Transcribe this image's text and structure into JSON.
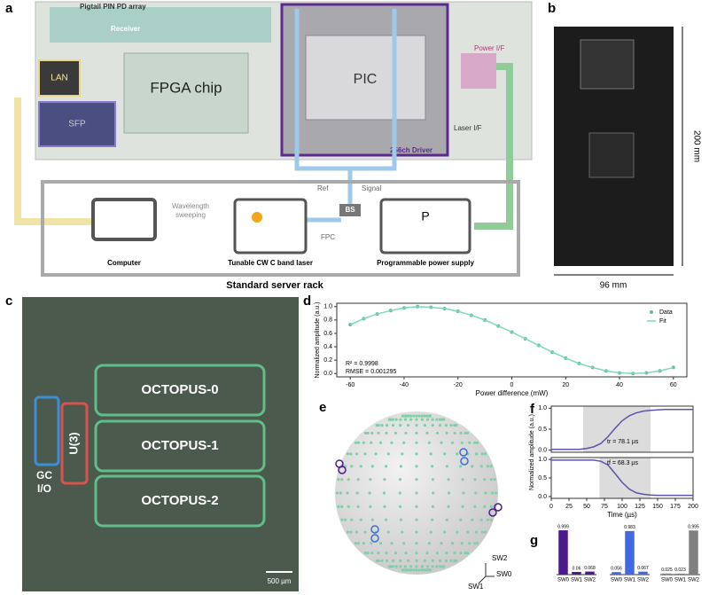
{
  "panel_labels": [
    "a",
    "b",
    "c",
    "d",
    "e",
    "f",
    "g"
  ],
  "a": {
    "pd_array": "Pigtail PIN PD array",
    "receiver": "Receiver",
    "lan": "LAN",
    "fpga": "FPGA chip",
    "sfp": "SFP",
    "pic": "PIC",
    "driver": "256ch Driver",
    "power_if": "Power I/F",
    "laser_if": "Laser I/F",
    "computer": "Computer",
    "sweep": [
      "Wavelength",
      "sweeping"
    ],
    "laser": "Tunable CW C band laser",
    "fpc": "FPC",
    "ref": "Ref",
    "signal": "Signal",
    "bs": "BS",
    "p": "P",
    "psu": "Programmable power supply",
    "rack": "Standard server rack"
  },
  "b": {
    "height": "200 mm",
    "width": "96 mm"
  },
  "c": {
    "octopus": [
      "OCTOPUS-0",
      "OCTOPUS-1",
      "OCTOPUS-2"
    ],
    "u3": "U(3)",
    "gc": [
      "GC",
      "I/O"
    ],
    "scale": "500 µm"
  },
  "e": {
    "axes": [
      "SW0",
      "SW1",
      "SW2"
    ]
  },
  "chart_data": [
    {
      "type": "line",
      "xlabel": "Power difference (mW)",
      "ylabel": "Normalized amplitude (a.u.)",
      "x": [
        -60,
        -55,
        -50,
        -45,
        -40,
        -35,
        -30,
        -25,
        -20,
        -15,
        -10,
        -5,
        0,
        5,
        10,
        15,
        20,
        25,
        30,
        35,
        40,
        45,
        50,
        55,
        60
      ],
      "series": [
        {
          "name": "Data",
          "color": "#5fbf95",
          "mode": "markers",
          "values": [
            0.73,
            0.82,
            0.89,
            0.94,
            0.98,
            1.0,
            0.99,
            0.97,
            0.93,
            0.87,
            0.8,
            0.71,
            0.62,
            0.52,
            0.42,
            0.32,
            0.23,
            0.15,
            0.09,
            0.04,
            0.01,
            0,
            0.01,
            0.04,
            0.09
          ]
        },
        {
          "name": "Fit",
          "color": "#7fd6c0",
          "mode": "line",
          "values": [
            0.73,
            0.82,
            0.89,
            0.94,
            0.98,
            1.0,
            0.99,
            0.97,
            0.93,
            0.87,
            0.8,
            0.71,
            0.62,
            0.52,
            0.42,
            0.32,
            0.23,
            0.15,
            0.09,
            0.04,
            0.01,
            0,
            0.01,
            0.04,
            0.09
          ]
        }
      ],
      "xlim": [
        -65,
        65
      ],
      "xticks": [
        -60,
        -40,
        -20,
        0,
        20,
        40,
        60
      ],
      "ylim": [
        -0.05,
        1.05
      ],
      "yticks": [
        {
          "value": 0,
          "label": "0.0"
        },
        {
          "value": 0.2,
          "label": "0.2"
        },
        {
          "value": 0.4,
          "label": "0.4"
        },
        {
          "value": 0.6,
          "label": "0.6"
        },
        {
          "value": 0.8,
          "label": "0.8"
        },
        {
          "value": 1,
          "label": "1.0"
        }
      ],
      "legend": "right",
      "annotations": [
        "R² = 0.9998",
        "RMSE = 0.001295"
      ]
    },
    {
      "type": "line",
      "ylabel": "Normalized amplitude (a.u.)",
      "x": [
        0,
        10,
        20,
        30,
        40,
        50,
        60,
        70,
        80,
        90,
        100,
        110,
        120,
        130,
        140,
        150,
        160,
        170,
        180,
        190,
        200
      ],
      "series": [
        {
          "color": "#5a55a8",
          "mode": "line",
          "values": [
            0.02,
            0.02,
            0.02,
            0.02,
            0.02,
            0.04,
            0.08,
            0.16,
            0.32,
            0.52,
            0.7,
            0.82,
            0.89,
            0.93,
            0.95,
            0.96,
            0.97,
            0.97,
            0.97,
            0.97,
            0.97
          ]
        }
      ],
      "xlim": [
        0,
        200
      ],
      "ylim": [
        -0.05,
        1.05
      ],
      "yticks": [
        {
          "value": 0,
          "label": "0.0"
        },
        {
          "value": 0.5,
          "label": "0.5"
        },
        {
          "value": 1,
          "label": "1.0"
        }
      ],
      "shade": [
        45,
        140
      ],
      "annotations": [
        "tr = 78.1 µs"
      ]
    },
    {
      "type": "line",
      "xlabel": "Time (µs)",
      "x": [
        0,
        10,
        20,
        30,
        40,
        50,
        60,
        70,
        80,
        90,
        100,
        110,
        120,
        130,
        140,
        150,
        160,
        170,
        180,
        190,
        200
      ],
      "series": [
        {
          "color": "#5a55a8",
          "mode": "line",
          "values": [
            0.98,
            0.98,
            0.98,
            0.98,
            0.98,
            0.98,
            0.98,
            0.95,
            0.85,
            0.62,
            0.38,
            0.2,
            0.1,
            0.06,
            0.04,
            0.03,
            0.03,
            0.03,
            0.03,
            0.03,
            0.03
          ]
        }
      ],
      "xlim": [
        0,
        200
      ],
      "xticks": [
        0,
        25,
        50,
        75,
        100,
        125,
        150,
        175,
        200
      ],
      "ylim": [
        -0.05,
        1.05
      ],
      "yticks": [
        {
          "value": 0,
          "label": "0.0"
        },
        {
          "value": 0.5,
          "label": "0.5"
        },
        {
          "value": 1,
          "label": "1.0"
        }
      ],
      "shade": [
        68,
        140
      ],
      "annotations": [
        "tf = 68.3 µs"
      ]
    },
    {
      "type": "bar",
      "categories": [
        "SW0",
        "SW1",
        "SW2"
      ],
      "values": [
        0.999,
        0.06,
        0.068
      ],
      "color": "#4b1a8c"
    },
    {
      "type": "bar",
      "categories": [
        "SW0",
        "SW1",
        "SW2"
      ],
      "values": [
        0.056,
        0.983,
        0.067
      ],
      "color": "#4169e1"
    },
    {
      "type": "bar",
      "categories": [
        "SW0",
        "SW1",
        "SW2"
      ],
      "values": [
        0.025,
        0.023,
        0.995
      ],
      "color": "#808080"
    }
  ]
}
